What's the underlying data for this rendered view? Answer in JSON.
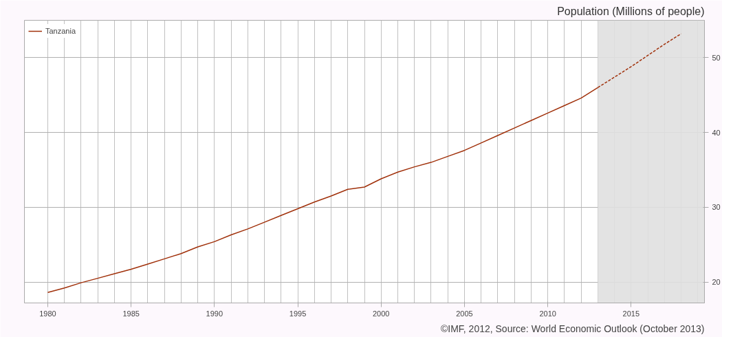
{
  "chart_data": {
    "type": "line",
    "title": "Population (Millions of people)",
    "annotations": [
      "©IMF, 2012, Source: World Economic Outlook (October 2013)"
    ],
    "series": [
      {
        "name": "Tanzania",
        "color": "#a0300a",
        "line_style": "solid",
        "x": [
          1980,
          1981,
          1982,
          1983,
          1984,
          1985,
          1986,
          1987,
          1988,
          1989,
          1990,
          1991,
          1992,
          1993,
          1994,
          1995,
          1996,
          1997,
          1998,
          1999,
          2000,
          2001,
          2002,
          2003,
          2004,
          2005,
          2006,
          2007,
          2008,
          2009,
          2010,
          2011,
          2012,
          2013
        ],
        "values": [
          18.6,
          19.2,
          19.9,
          20.5,
          21.1,
          21.7,
          22.4,
          23.1,
          23.8,
          24.7,
          25.4,
          26.3,
          27.1,
          28.0,
          28.9,
          29.8,
          30.7,
          31.5,
          32.4,
          32.7,
          33.8,
          34.7,
          35.4,
          36.0,
          36.8,
          37.6,
          38.6,
          39.6,
          40.6,
          41.6,
          42.6,
          43.6,
          44.6,
          46.0
        ]
      },
      {
        "color": "#a0300a",
        "line_style": "dashed",
        "x": [
          2013,
          2014,
          2015,
          2016,
          2017,
          2018
        ],
        "values": [
          46.0,
          47.4,
          48.8,
          50.3,
          51.8,
          53.2
        ]
      }
    ],
    "bands": [
      {
        "axis": "x",
        "from": 2013,
        "to": 2019.4,
        "color": "#e0e0e0"
      }
    ],
    "xlim": [
      1978.6,
      2019.4
    ],
    "ylim": [
      17.2,
      55
    ],
    "xticks": [
      1980,
      {
        "value": 1981,
        "label": null
      },
      {
        "value": 1982,
        "label": null
      },
      {
        "value": 1983,
        "label": null
      },
      {
        "value": 1984,
        "label": null
      },
      1985,
      {
        "value": 1986,
        "label": null
      },
      {
        "value": 1987,
        "label": null
      },
      {
        "value": 1988,
        "label": null
      },
      {
        "value": 1989,
        "label": null
      },
      1990,
      {
        "value": 1991,
        "label": null
      },
      {
        "value": 1992,
        "label": null
      },
      {
        "value": 1993,
        "label": null
      },
      {
        "value": 1994,
        "label": null
      },
      1995,
      {
        "value": 1996,
        "label": null
      },
      {
        "value": 1997,
        "label": null
      },
      {
        "value": 1998,
        "label": null
      },
      {
        "value": 1999,
        "label": null
      },
      2000,
      {
        "value": 2001,
        "label": null
      },
      {
        "value": 2002,
        "label": null
      },
      {
        "value": 2003,
        "label": null
      },
      {
        "value": 2004,
        "label": null
      },
      2005,
      {
        "value": 2006,
        "label": null
      },
      {
        "value": 2007,
        "label": null
      },
      {
        "value": 2008,
        "label": null
      },
      {
        "value": 2009,
        "label": null
      },
      2010,
      {
        "value": 2011,
        "label": null
      },
      {
        "value": 2012,
        "label": null
      },
      {
        "value": 2013,
        "label": null
      },
      {
        "value": 2014,
        "label": null
      },
      2015,
      {
        "value": 2016,
        "label": null
      },
      {
        "value": 2017,
        "label": null
      },
      {
        "value": 2018,
        "label": null
      },
      {
        "value": 2019,
        "label": null
      }
    ],
    "yticks": [
      20,
      30,
      40,
      50
    ],
    "grid": true,
    "legend": "top left"
  }
}
